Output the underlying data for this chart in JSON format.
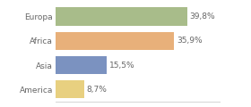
{
  "categories": [
    "Europa",
    "Africa",
    "Asia",
    "America"
  ],
  "values": [
    39.8,
    35.9,
    15.5,
    8.7
  ],
  "labels": [
    "39,8%",
    "35,9%",
    "15,5%",
    "8,7%"
  ],
  "bar_colors": [
    "#a8bc8a",
    "#e8b07a",
    "#7b92c0",
    "#e8d080"
  ],
  "background_color": "#ffffff",
  "xlim": [
    0,
    50
  ],
  "bar_height": 0.75,
  "label_fontsize": 6.5,
  "tick_fontsize": 6.5,
  "text_color": "#666666"
}
